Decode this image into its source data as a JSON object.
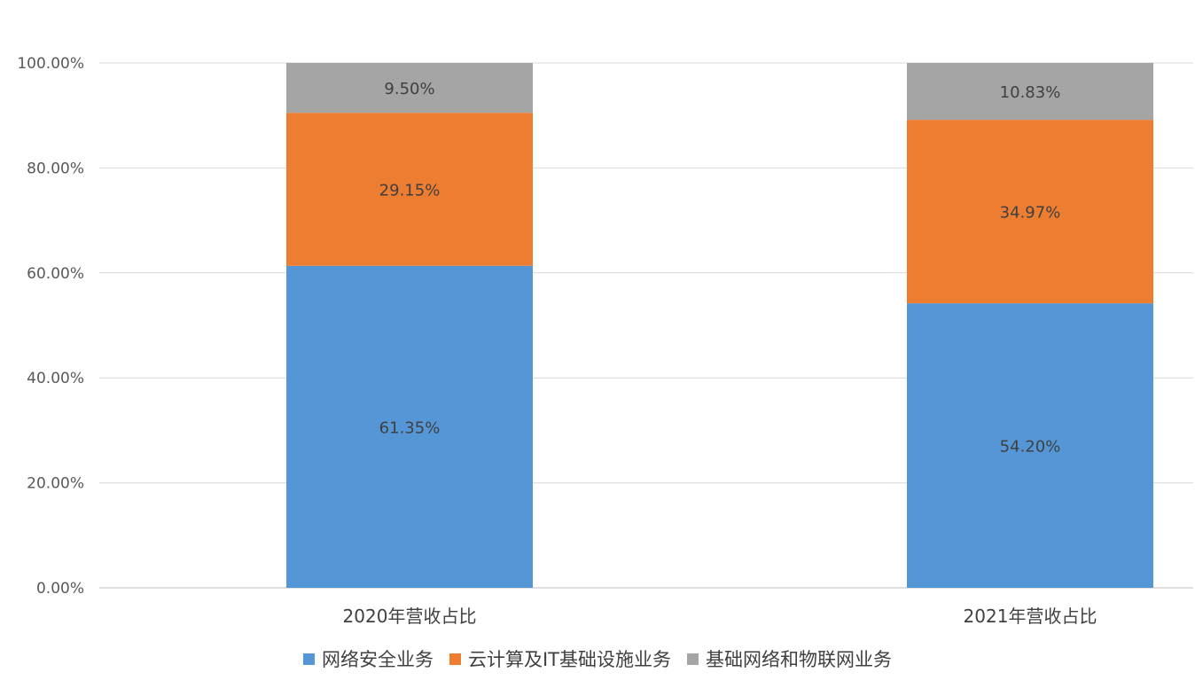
{
  "chart_data": {
    "type": "bar",
    "stacked": true,
    "categories": [
      "2020年营收占比",
      "2021年营收占比"
    ],
    "series": [
      {
        "name": "网络安全业务",
        "values": [
          61.35,
          54.2
        ],
        "labels": [
          "61.35%",
          "54.20%"
        ],
        "color": "#5597D6"
      },
      {
        "name": "云计算及IT基础设施业务",
        "values": [
          29.15,
          34.97
        ],
        "labels": [
          "29.15%",
          "34.97%"
        ],
        "color": "#ED7D31"
      },
      {
        "name": "基础网络和物联网业务",
        "values": [
          9.5,
          10.83
        ],
        "labels": [
          "9.50%",
          "10.83%"
        ],
        "color": "#A5A5A5"
      }
    ],
    "yticks": [
      "0.00%",
      "20.00%",
      "40.00%",
      "60.00%",
      "80.00%",
      "100.00%"
    ],
    "ylim": [
      0,
      100
    ],
    "grid": true,
    "legend_position": "bottom"
  }
}
